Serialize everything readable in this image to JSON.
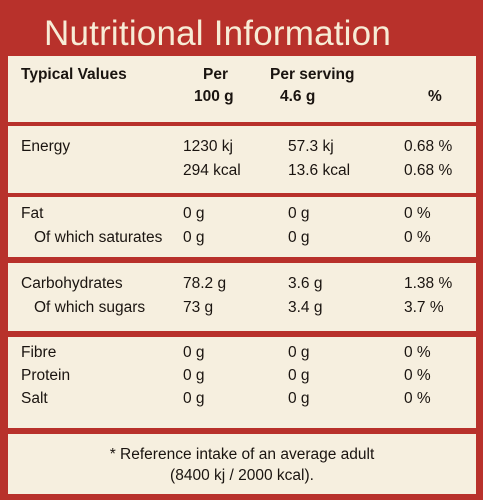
{
  "title": "Nutritional Information",
  "header": {
    "typical": "Typical Values",
    "per_100_line1": "Per",
    "per_100_line2": "100 g",
    "per_serving_line1": "Per serving",
    "per_serving_line2": "4.6 g",
    "percent": "%"
  },
  "energy": [
    {
      "name": "Energy",
      "per100": "1230 kj",
      "serving": "57.3 kj",
      "pct": "0.68 %"
    },
    {
      "name": "",
      "per100": "294 kcal",
      "serving": "13.6 kcal",
      "pct": "0.68 %"
    }
  ],
  "fat": [
    {
      "name": "Fat",
      "per100": "0 g",
      "serving": "0 g",
      "pct": "0 %"
    },
    {
      "name": "Of which saturates",
      "per100": "0 g",
      "serving": "0 g",
      "pct": "0 %"
    }
  ],
  "carbs": [
    {
      "name": "Carbohydrates",
      "per100": "78.2 g",
      "serving": "3.6 g",
      "pct": "1.38 %"
    },
    {
      "name": "Of which sugars",
      "per100": "73 g",
      "serving": "3.4 g",
      "pct": "3.7 %"
    }
  ],
  "misc": [
    {
      "name": "Fibre",
      "per100": "0 g",
      "serving": "0 g",
      "pct": "0 %"
    },
    {
      "name": "Protein",
      "per100": "0 g",
      "serving": "0 g",
      "pct": "0 %"
    },
    {
      "name": "Salt",
      "per100": "0 g",
      "serving": "0 g",
      "pct": "0 %"
    }
  ],
  "reference": {
    "line1": "* Reference intake of an average adult",
    "line2": "(8400 kj / 2000 kcal)."
  },
  "colors": {
    "panel_red": "#b8312b",
    "box_cream": "#f6efdf",
    "title_text": "#f7ecd6"
  }
}
